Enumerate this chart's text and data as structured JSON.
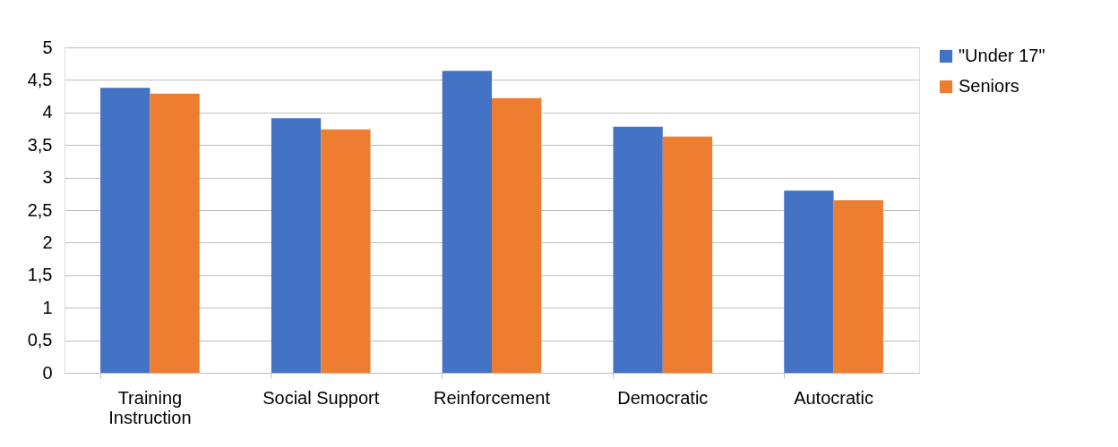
{
  "chart_data": {
    "type": "bar",
    "categories": [
      "Training Instruction",
      "Social Support",
      "Reinforcement",
      "Democratic",
      "Autocratic"
    ],
    "series": [
      {
        "name": "\"Under 17\"",
        "color": "#4472c4",
        "values": [
          4.38,
          3.91,
          4.64,
          3.78,
          2.8
        ]
      },
      {
        "name": "Seniors",
        "color": "#ed7d31",
        "values": [
          4.29,
          3.74,
          4.22,
          3.63,
          2.65
        ]
      }
    ],
    "ylim": [
      0,
      5
    ],
    "yticks": [
      0,
      {
        "value": 0.5,
        "label": "0,5"
      },
      1,
      {
        "value": 1.5,
        "label": "1,5"
      },
      2,
      {
        "value": 2.5,
        "label": "2,5"
      },
      3,
      {
        "value": 3.5,
        "label": "3,5"
      },
      4,
      {
        "value": 4.5,
        "label": "4,5"
      },
      5
    ],
    "grid": "y",
    "legend": "right"
  }
}
